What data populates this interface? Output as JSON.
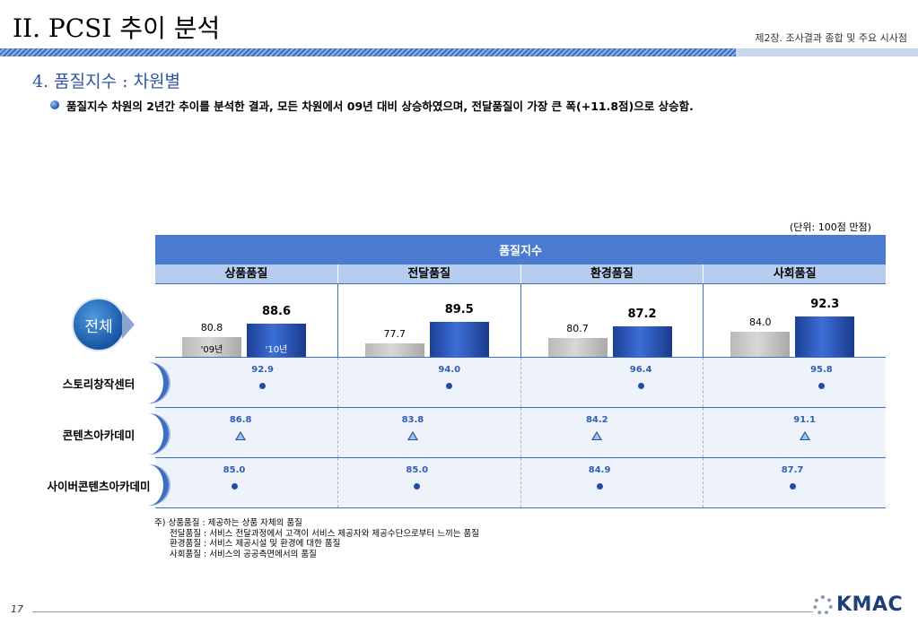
{
  "header": {
    "title": "II. PCSI 추이 분석",
    "chapter": "제2장. 조사결과 종합 및 주요 시사점"
  },
  "section": {
    "title": "4. 품질지수 : 차원별",
    "summary": "품질지수 차원의 2년간 추이를 분석한 결과, 모든 차원에서 09년 대비 상승하였으며, 전달품질이 가장 큰 폭(+11.8점)으로 상승함."
  },
  "table": {
    "unit": "(단위: 100점 만점)",
    "header": "품질지수",
    "dimensions": [
      "상품품질",
      "전달품질",
      "환경품질",
      "사회품질"
    ],
    "total_label": "전체",
    "year_labels": [
      "'09년",
      "'10년"
    ],
    "totals": [
      {
        "v09": "80.8",
        "v10": "88.6"
      },
      {
        "v09": "77.7",
        "v10": "89.5"
      },
      {
        "v09": "80.7",
        "v10": "87.2"
      },
      {
        "v09": "84.0",
        "v10": "92.3"
      }
    ],
    "orgs": [
      {
        "name": "스토리창작센터",
        "marker": "dot",
        "scores": [
          "92.9",
          "94.0",
          "96.4",
          "95.8"
        ]
      },
      {
        "name": "콘텐츠아카데미",
        "marker": "triangle",
        "scores": [
          "86.8",
          "83.8",
          "84.2",
          "91.1"
        ]
      },
      {
        "name": "사이버콘텐츠아카데미",
        "marker": "dot",
        "scores": [
          "85.0",
          "85.0",
          "84.9",
          "87.7"
        ]
      }
    ]
  },
  "chart_data": {
    "type": "bar",
    "title": "품질지수",
    "categories": [
      "상품품질",
      "전달품질",
      "환경품질",
      "사회품질"
    ],
    "series": [
      {
        "name": "'09년",
        "values": [
          80.8,
          77.7,
          80.7,
          84.0
        ]
      },
      {
        "name": "'10년",
        "values": [
          88.6,
          89.5,
          87.2,
          92.3
        ]
      }
    ],
    "points": [
      {
        "name": "스토리창작센터",
        "values": [
          92.9,
          94.0,
          96.4,
          95.8
        ]
      },
      {
        "name": "콘텐츠아카데미",
        "values": [
          86.8,
          83.8,
          84.2,
          91.1
        ]
      },
      {
        "name": "사이버콘텐츠아카데미",
        "values": [
          85.0,
          85.0,
          84.9,
          87.7
        ]
      }
    ]
  },
  "notes": {
    "prefix": "주)",
    "lines": [
      "상품품질 : 제공하는 상품 자체의 품질",
      "전달품질 : 서비스 전달과정에서 고객이 서비스 제공자와 제공수단으로부터 느끼는 품질",
      "환경품질 : 서비스 제공시설 및 환경에 대한 품질",
      "사회품질 : 서비스의 공공측면에서의 품질"
    ]
  },
  "footer": {
    "page": "17",
    "logo": "KMAC"
  },
  "colors": {
    "accent": "#4a7bd0",
    "bar_2009": "#c0c0c0",
    "bar_2010": "#2a55b8"
  }
}
